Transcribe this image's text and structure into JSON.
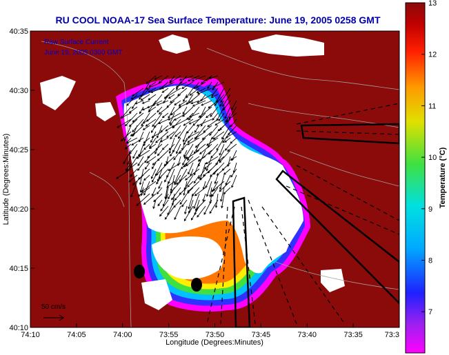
{
  "chart_data": {
    "type": "heatmap",
    "title": "RU COOL  NOAA-17  Sea Surface Temperature:  June 19, 2005 0258 GMT",
    "legend_lines": [
      "Raw Surface Current",
      "June 19, 2005 0300 GMT"
    ],
    "xlabel": "Longitude (Degrees:Minutes)",
    "ylabel": "Latitude (Degrees:Minutes)",
    "x_ticks": [
      "74:10",
      "74:05",
      "74:00",
      "73:55",
      "73:50",
      "73:45",
      "73:40",
      "73:35",
      "73:3"
    ],
    "y_ticks": [
      "40:35",
      "40:30",
      "40:25",
      "40:20",
      "40:15",
      "40:10"
    ],
    "xlim": [
      -74.1667,
      -73.5
    ],
    "ylim": [
      40.1667,
      40.5833
    ],
    "colorbar": {
      "label": "Temperature (°C)",
      "ticks": [
        13,
        12,
        11,
        10,
        9,
        8,
        7
      ],
      "range": [
        6.2,
        13
      ]
    },
    "scale_label": "50 cm/s",
    "colors": {
      "warm": "#8b0a0a",
      "land": "#ffffff",
      "title": "#0000aa",
      "legend": "#0000cc"
    }
  }
}
